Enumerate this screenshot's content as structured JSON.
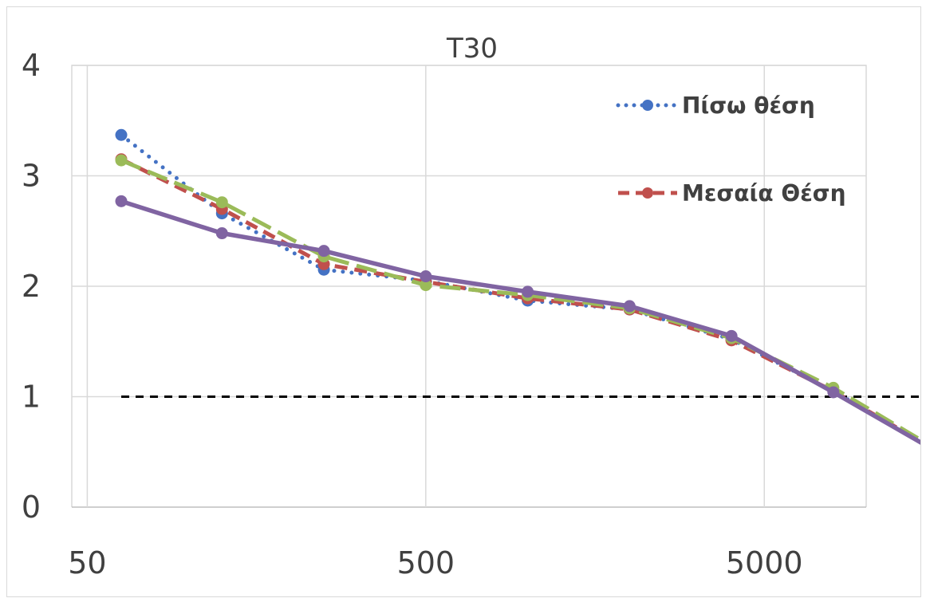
{
  "chart_data": {
    "type": "line",
    "title": "T30",
    "xlabel": "",
    "ylabel": "",
    "x_scale": "log",
    "xlim": [
      45,
      10000
    ],
    "ylim": [
      0,
      4
    ],
    "grid": true,
    "legend_position": "top-right",
    "y_ticks": [
      "0",
      "1",
      "2",
      "3",
      "4"
    ],
    "x_ticks": [
      "50",
      "500",
      "5000"
    ],
    "x": [
      63,
      125,
      250,
      500,
      1000,
      2000,
      4000,
      8000,
      16000
    ],
    "series": [
      {
        "name": "Πίσω θέση",
        "color": "#4472c4",
        "style": "dotted",
        "values": [
          3.37,
          2.66,
          2.15,
          2.05,
          1.87,
          1.79,
          1.52,
          1.05,
          0.52
        ]
      },
      {
        "name": "Μεσαία Θέση",
        "color": "#c0504d",
        "style": "dashed",
        "values": [
          3.15,
          2.7,
          2.2,
          2.04,
          1.89,
          1.79,
          1.51,
          1.05,
          0.52
        ]
      },
      {
        "color": "#9bbb59",
        "style": "longdash",
        "values": [
          3.14,
          2.76,
          2.27,
          2.01,
          1.92,
          1.8,
          1.53,
          1.08,
          0.53
        ]
      },
      {
        "color": "#8064a2",
        "style": "solid",
        "values": [
          2.77,
          2.48,
          2.32,
          2.09,
          1.95,
          1.82,
          1.55,
          1.04,
          0.51
        ]
      }
    ],
    "reference_line": {
      "y": 1,
      "x_from": 63,
      "x_to": 16000,
      "color": "#000000",
      "style": "dashed"
    }
  }
}
